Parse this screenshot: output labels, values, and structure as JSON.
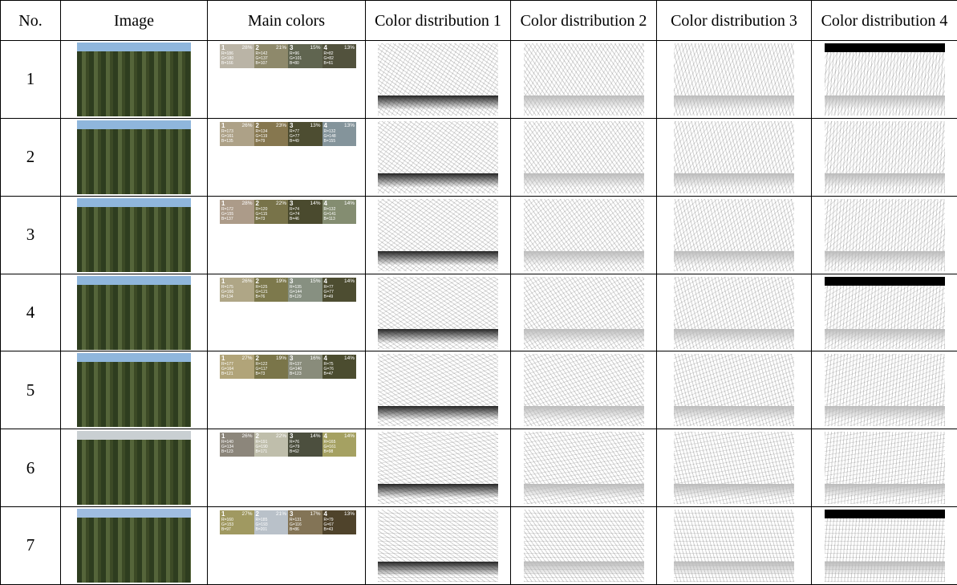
{
  "table": {
    "header": [
      "No.",
      "Image",
      "Main colors",
      "Color distribution 1",
      "Color distribution 2",
      "Color distribution 3",
      "Color distribution 4"
    ],
    "rows": [
      {
        "no": "1",
        "colors": [
          {
            "index": "1",
            "percent": "28%",
            "r": "R=186",
            "g": "G=180",
            "b": "B=166",
            "color": "#bab4a6"
          },
          {
            "index": "2",
            "percent": "21%",
            "r": "R=142",
            "g": "G=137",
            "b": "B=107",
            "color": "#8e896b"
          },
          {
            "index": "3",
            "percent": "15%",
            "r": "R=96",
            "g": "G=101",
            "b": "B=80",
            "color": "#606550"
          },
          {
            "index": "4",
            "percent": "13%",
            "r": "R=82",
            "g": "G=82",
            "b": "B=61",
            "color": "#52523d"
          }
        ]
      },
      {
        "no": "2",
        "colors": [
          {
            "index": "1",
            "percent": "26%",
            "r": "R=173",
            "g": "G=161",
            "b": "B=135",
            "color": "#ada187"
          },
          {
            "index": "2",
            "percent": "23%",
            "r": "R=134",
            "g": "G=119",
            "b": "B=79",
            "color": "#86774f"
          },
          {
            "index": "3",
            "percent": "13%",
            "r": "R=77",
            "g": "G=77",
            "b": "B=49",
            "color": "#4d4d31"
          },
          {
            "index": "4",
            "percent": "13%",
            "r": "R=132",
            "g": "G=148",
            "b": "B=155",
            "color": "#84949b"
          }
        ]
      },
      {
        "no": "3",
        "colors": [
          {
            "index": "1",
            "percent": "28%",
            "r": "R=172",
            "g": "G=155",
            "b": "B=137",
            "color": "#ac9b89"
          },
          {
            "index": "2",
            "percent": "22%",
            "r": "R=120",
            "g": "G=115",
            "b": "B=73",
            "color": "#787349"
          },
          {
            "index": "3",
            "percent": "14%",
            "r": "R=74",
            "g": "G=74",
            "b": "B=46",
            "color": "#4a4a2e"
          },
          {
            "index": "4",
            "percent": "14%",
            "r": "R=132",
            "g": "G=141",
            "b": "B=113",
            "color": "#848d71"
          }
        ]
      },
      {
        "no": "4",
        "colors": [
          {
            "index": "1",
            "percent": "26%",
            "r": "R=175",
            "g": "G=166",
            "b": "B=134",
            "color": "#afa686"
          },
          {
            "index": "2",
            "percent": "19%",
            "r": "R=125",
            "g": "G=121",
            "b": "B=76",
            "color": "#7d794c"
          },
          {
            "index": "3",
            "percent": "15%",
            "r": "R=135",
            "g": "G=144",
            "b": "B=129",
            "color": "#879081"
          },
          {
            "index": "4",
            "percent": "14%",
            "r": "R=77",
            "g": "G=77",
            "b": "B=49",
            "color": "#4d4d31"
          }
        ]
      },
      {
        "no": "5",
        "colors": [
          {
            "index": "1",
            "percent": "27%",
            "r": "R=177",
            "g": "G=164",
            "b": "B=121",
            "color": "#b1a479"
          },
          {
            "index": "2",
            "percent": "19%",
            "r": "R=122",
            "g": "G=117",
            "b": "B=73",
            "color": "#7a7549"
          },
          {
            "index": "3",
            "percent": "16%",
            "r": "R=137",
            "g": "G=140",
            "b": "B=123",
            "color": "#898c7b"
          },
          {
            "index": "4",
            "percent": "14%",
            "r": "R=75",
            "g": "G=76",
            "b": "B=47",
            "color": "#4b4c2f"
          }
        ]
      },
      {
        "no": "6",
        "colors": [
          {
            "index": "1",
            "percent": "26%",
            "r": "R=140",
            "g": "G=134",
            "b": "B=123",
            "color": "#8c867b"
          },
          {
            "index": "2",
            "percent": "22%",
            "r": "R=191",
            "g": "G=190",
            "b": "B=171",
            "color": "#bfbeab"
          },
          {
            "index": "3",
            "percent": "14%",
            "r": "R=76",
            "g": "G=79",
            "b": "B=62",
            "color": "#4c4f3e"
          },
          {
            "index": "4",
            "percent": "14%",
            "r": "R=165",
            "g": "G=161",
            "b": "B=98",
            "color": "#a5a162"
          }
        ]
      },
      {
        "no": "7",
        "colors": [
          {
            "index": "1",
            "percent": "27%",
            "r": "R=160",
            "g": "G=153",
            "b": "B=97",
            "color": "#a09961"
          },
          {
            "index": "2",
            "percent": "21%",
            "r": "R=185",
            "g": "G=193",
            "b": "B=201",
            "color": "#b9c1c9"
          },
          {
            "index": "3",
            "percent": "17%",
            "r": "R=131",
            "g": "G=116",
            "b": "B=86",
            "color": "#837456"
          },
          {
            "index": "4",
            "percent": "13%",
            "r": "R=79",
            "g": "G=67",
            "b": "B=43",
            "color": "#4f432b"
          }
        ]
      }
    ]
  }
}
